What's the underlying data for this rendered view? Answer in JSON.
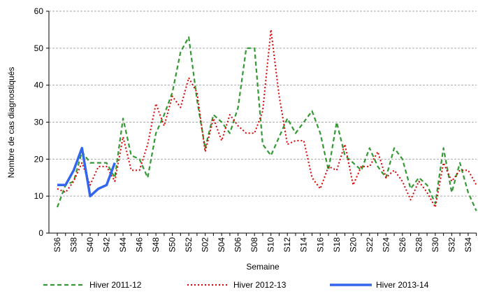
{
  "chart_data": {
    "type": "line",
    "y_label": "Nombre de cas diagnostiqués",
    "x_label": "Semaine",
    "categories": [
      "S36",
      null,
      "S38",
      null,
      "S40",
      null,
      "S42",
      null,
      "S44",
      null,
      "S46",
      null,
      "S48",
      null,
      "S50",
      null,
      "S52",
      null,
      "S02",
      null,
      "S04",
      null,
      "S06",
      null,
      "S08",
      null,
      "S10",
      null,
      "S12",
      null,
      "S14",
      null,
      "S16",
      null,
      "S18",
      null,
      "S20",
      null,
      "S22",
      null,
      "S24",
      null,
      "S26",
      null,
      "S28",
      null,
      "S30",
      null,
      "S32",
      null,
      "S34",
      null
    ],
    "series": [
      {
        "name": "Hiver 2011-12",
        "color": "#339933",
        "dash": "6,4",
        "width": 2.2,
        "values": [
          7,
          13,
          14,
          22,
          19,
          19,
          19,
          15,
          31,
          21,
          20,
          15,
          27,
          32,
          38,
          49,
          53,
          36,
          23,
          32,
          30,
          27,
          34,
          50,
          50,
          24,
          21,
          26,
          31,
          27,
          30,
          33,
          27,
          17,
          30,
          21,
          19,
          17,
          23,
          18,
          15,
          23,
          20,
          12,
          15,
          13,
          8,
          23,
          11,
          19,
          11,
          6
        ]
      },
      {
        "name": "Hiver 2012-13",
        "color": "#dd0000",
        "dash": "2,3",
        "width": 2,
        "values": [
          12,
          11,
          14,
          19,
          13,
          18,
          18,
          14,
          26,
          17,
          17,
          24,
          35,
          29,
          37,
          34,
          42,
          38,
          22,
          31,
          25,
          32,
          29,
          27,
          27,
          33,
          55,
          37,
          24,
          25,
          25,
          15,
          12,
          18,
          17,
          24,
          13,
          18,
          18,
          22,
          15,
          17,
          14,
          9,
          14,
          11,
          7,
          19,
          14,
          17,
          17,
          13
        ]
      },
      {
        "name": "Hiver 2013-14",
        "color": "#3366ee",
        "dash": "",
        "width": 3.5,
        "values": [
          13,
          13,
          17,
          23,
          10,
          12,
          13,
          19,
          null,
          null,
          null,
          null,
          null,
          null,
          null,
          null,
          null,
          null,
          null,
          null,
          null,
          null,
          null,
          null,
          null,
          null,
          null,
          null,
          null,
          null,
          null,
          null,
          null,
          null,
          null,
          null,
          null,
          null,
          null,
          null,
          null,
          null,
          null,
          null,
          null,
          null,
          null,
          null,
          null,
          null,
          null,
          null
        ]
      }
    ],
    "ylim": [
      0,
      60
    ],
    "yticks": [
      0,
      10,
      20,
      30,
      40,
      50,
      60
    ],
    "grid": true
  }
}
